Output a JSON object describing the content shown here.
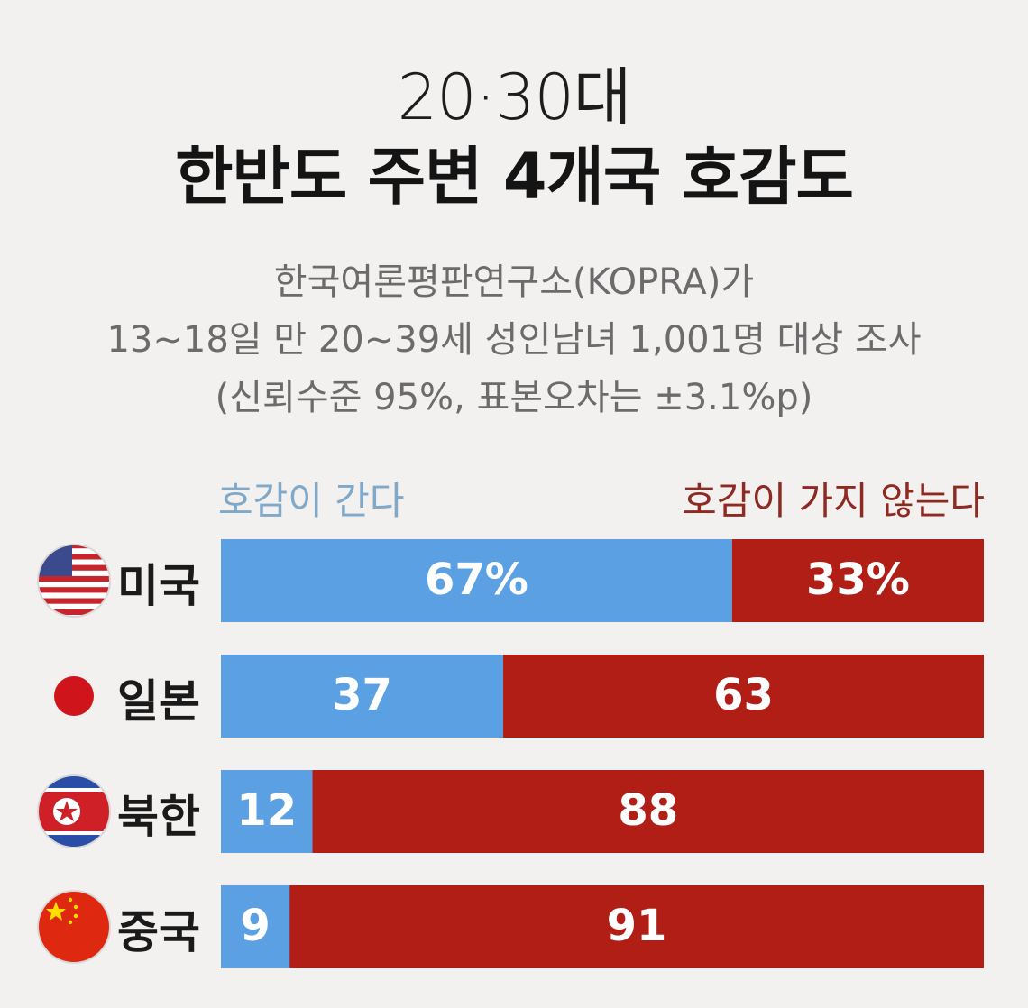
{
  "header": {
    "title_line1": "20·30대",
    "title_line2": "한반도 주변 4개국 호감도",
    "subtitle_line1": "한국여론평판연구소(KOPRA)가",
    "subtitle_line2": "13~18일 만 20~39세 성인남녀 1,001명 대상 조사",
    "subtitle_line3": "(신뢰수준 95%, 표본오차는 ±3.1%p)"
  },
  "colors": {
    "positive": "#5aa0e3",
    "negative": "#b01e16",
    "label_positive": "#7fa8c9",
    "label_negative": "#8e2a22"
  },
  "chart_data": {
    "type": "bar",
    "orientation": "horizontal-stacked-100",
    "title": "한반도 주변 4개국 호감도",
    "categories": [
      "미국",
      "일본",
      "북한",
      "중국"
    ],
    "flags": [
      "us-flag-icon",
      "japan-flag-icon",
      "north-korea-flag-icon",
      "china-flag-icon"
    ],
    "series": [
      {
        "name": "호감이 간다",
        "values": [
          67,
          37,
          12,
          9
        ],
        "labels": [
          "67%",
          "37",
          "12",
          "9"
        ]
      },
      {
        "name": "호감이 가지 않는다",
        "values": [
          33,
          63,
          88,
          91
        ],
        "labels": [
          "33%",
          "63",
          "88",
          "91"
        ]
      }
    ],
    "xlim": [
      0,
      100
    ]
  }
}
